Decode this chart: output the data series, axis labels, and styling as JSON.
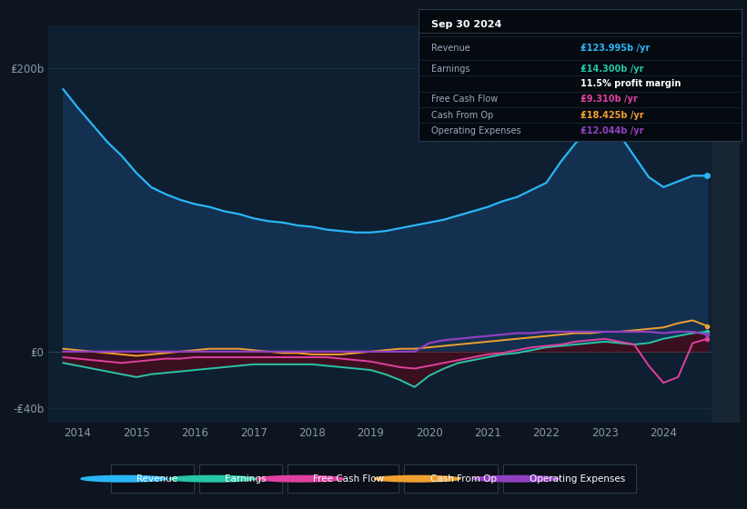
{
  "background_color": "#0d1520",
  "plot_bg_color": "#0d1f30",
  "grid_color": "#1e3a52",
  "text_color": "#8899aa",
  "ylim_min": -50,
  "ylim_max": 230,
  "years": [
    2013.75,
    2014.0,
    2014.25,
    2014.5,
    2014.75,
    2015.0,
    2015.25,
    2015.5,
    2015.75,
    2016.0,
    2016.25,
    2016.5,
    2016.75,
    2017.0,
    2017.25,
    2017.5,
    2017.75,
    2018.0,
    2018.25,
    2018.5,
    2018.75,
    2019.0,
    2019.25,
    2019.5,
    2019.75,
    2020.0,
    2020.25,
    2020.5,
    2020.75,
    2021.0,
    2021.25,
    2021.5,
    2021.75,
    2022.0,
    2022.25,
    2022.5,
    2022.75,
    2023.0,
    2023.25,
    2023.5,
    2023.75,
    2024.0,
    2024.25,
    2024.5,
    2024.75
  ],
  "revenue": [
    185,
    172,
    160,
    148,
    138,
    126,
    116,
    111,
    107,
    104,
    102,
    99,
    97,
    94,
    92,
    91,
    89,
    88,
    86,
    85,
    84,
    84,
    85,
    87,
    89,
    91,
    93,
    96,
    99,
    102,
    106,
    109,
    114,
    119,
    134,
    147,
    157,
    161,
    153,
    138,
    123,
    116,
    120,
    124,
    124
  ],
  "earnings": [
    -8,
    -10,
    -12,
    -14,
    -16,
    -18,
    -16,
    -15,
    -14,
    -13,
    -12,
    -11,
    -10,
    -9,
    -9,
    -9,
    -9,
    -9,
    -10,
    -11,
    -12,
    -13,
    -16,
    -20,
    -25,
    -17,
    -12,
    -8,
    -6,
    -4,
    -2,
    -1,
    1,
    3,
    4,
    5,
    6,
    7,
    6,
    5,
    6,
    9,
    11,
    13,
    14
  ],
  "free_cash_flow": [
    -4,
    -5,
    -6,
    -7,
    -8,
    -7,
    -6,
    -5,
    -5,
    -4,
    -4,
    -4,
    -4,
    -4,
    -4,
    -4,
    -4,
    -4,
    -4,
    -5,
    -6,
    -7,
    -9,
    -11,
    -12,
    -10,
    -8,
    -6,
    -4,
    -2,
    -1,
    1,
    3,
    4,
    5,
    7,
    8,
    9,
    7,
    5,
    -10,
    -22,
    -18,
    6,
    9
  ],
  "cash_from_op": [
    2,
    1,
    0,
    -1,
    -2,
    -3,
    -2,
    -1,
    0,
    1,
    2,
    2,
    2,
    1,
    0,
    -1,
    -1,
    -2,
    -2,
    -2,
    -1,
    0,
    1,
    2,
    2,
    3,
    4,
    5,
    6,
    7,
    8,
    9,
    10,
    11,
    12,
    13,
    13,
    14,
    14,
    15,
    16,
    17,
    20,
    22,
    18
  ],
  "operating_expenses": [
    0,
    0,
    0,
    0,
    0,
    0,
    0,
    0,
    0,
    0,
    0,
    0,
    0,
    0,
    0,
    0,
    0,
    0,
    0,
    0,
    0,
    0,
    0,
    0,
    0,
    6,
    8,
    9,
    10,
    11,
    12,
    13,
    13,
    14,
    14,
    14,
    14,
    14,
    14,
    14,
    14,
    13,
    14,
    14,
    12
  ],
  "revenue_color": "#29b6f6",
  "earnings_color": "#26c6a6",
  "free_cash_flow_color": "#e040a0",
  "cash_from_op_color": "#f0a030",
  "operating_expenses_color": "#9040c0",
  "revenue_fill_color": "#143050",
  "earnings_fill_color": "#3a1020",
  "shaded_right_color": "#182535",
  "tooltip_bg": "#050a10",
  "tooltip_border": "#2a3a4a",
  "legend_bg": "#0a0f18",
  "legend_border": "#2a3a4a",
  "tooltip_title": "Sep 30 2024",
  "tooltip_revenue_label": "Revenue",
  "tooltip_revenue_value": "₤123.995b /yr",
  "tooltip_earnings_label": "Earnings",
  "tooltip_earnings_value": "₤14.300b /yr",
  "tooltip_margin": "11.5% profit margin",
  "tooltip_fcf_label": "Free Cash Flow",
  "tooltip_fcf_value": "₤9.310b /yr",
  "tooltip_cashop_label": "Cash From Op",
  "tooltip_cashop_value": "₤18.425b /yr",
  "tooltip_opex_label": "Operating Expenses",
  "tooltip_opex_value": "₤12.044b /yr",
  "legend_items": [
    "Revenue",
    "Earnings",
    "Free Cash Flow",
    "Cash From Op",
    "Operating Expenses"
  ],
  "legend_colors": [
    "#29b6f6",
    "#26c6a6",
    "#e040a0",
    "#f0a030",
    "#9040c0"
  ],
  "xtick_years": [
    2014,
    2015,
    2016,
    2017,
    2018,
    2019,
    2020,
    2021,
    2022,
    2023,
    2024
  ],
  "ytick_vals": [
    -40,
    0,
    200
  ],
  "ytick_labels": [
    "-₤40b",
    "₤0",
    "₤200b"
  ]
}
